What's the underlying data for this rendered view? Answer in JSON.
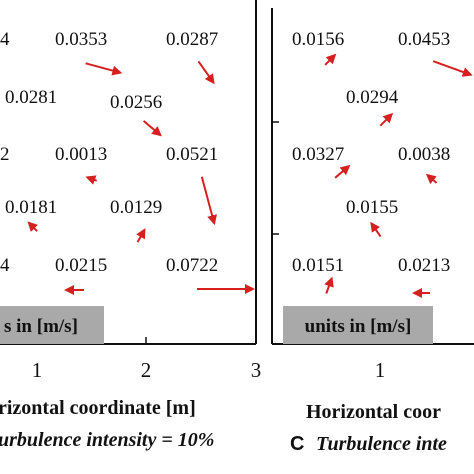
{
  "chart_data": [
    {
      "type": "scatter",
      "x_ticks": [
        "1",
        "2",
        "3"
      ],
      "units_label": "s in [m/s]",
      "xlabel": "rizontal coordinate [m]",
      "caption": "urbulence intensity = 10%",
      "arrow_color": "#d62020",
      "cells": [
        {
          "label": "4",
          "dir": null
        },
        {
          "label": "0.0353",
          "dir": 15
        },
        {
          "label": "0.0287",
          "dir": 55
        },
        {
          "label": "0.0281",
          "dir": null
        },
        {
          "label": "0.0256",
          "dir": 40
        },
        {
          "label": "2",
          "dir": null
        },
        {
          "label": "0.0013",
          "dir": 200
        },
        {
          "label": "0.0521",
          "dir": 75
        },
        {
          "label": "0.0181",
          "dir": 225
        },
        {
          "label": "0.0129",
          "dir": 300
        },
        {
          "label": "4",
          "dir": null
        },
        {
          "label": "0.0215",
          "dir": 180
        },
        {
          "label": "0.0722",
          "dir": 0
        }
      ]
    },
    {
      "type": "scatter",
      "x_ticks": [
        "1"
      ],
      "units_label": "units in [m/s]",
      "xlabel": "Horizontal coor",
      "caption_letter": "C",
      "caption": "Turbulence inte",
      "arrow_color": "#d62020",
      "cells": [
        {
          "label": "0.0156",
          "dir": 315
        },
        {
          "label": "0.0453",
          "dir": 20
        },
        {
          "label": "0.0294",
          "dir": 315
        },
        {
          "label": "0.0327",
          "dir": 320
        },
        {
          "label": "0.0038",
          "dir": 220
        },
        {
          "label": "0.0155",
          "dir": 235
        },
        {
          "label": "0.0151",
          "dir": 290
        },
        {
          "label": "0.0213",
          "dir": 180
        }
      ]
    }
  ]
}
